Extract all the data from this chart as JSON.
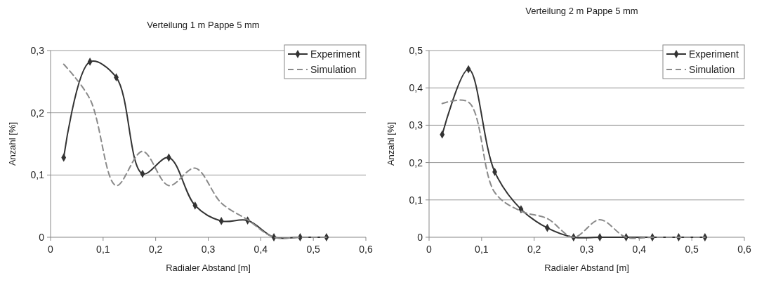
{
  "chart_data": [
    {
      "type": "line",
      "title": "Verteilung 1 m Pappe 5 mm",
      "xlabel": "Radialer Abstand [m]",
      "ylabel": "Anzahl [%]",
      "x": [
        0.025,
        0.075,
        0.125,
        0.175,
        0.225,
        0.275,
        0.325,
        0.375,
        0.425,
        0.475,
        0.525
      ],
      "series": [
        {
          "name": "Experiment",
          "color": "#333333",
          "marker": "diamond",
          "line_style": "solid",
          "values": [
            0.128,
            0.282,
            0.257,
            0.102,
            0.128,
            0.051,
            0.026,
            0.027,
            0,
            0,
            0
          ]
        },
        {
          "name": "Simulation",
          "color": "#8a8a8a",
          "marker": "none",
          "line_style": "dashed",
          "values": [
            0.278,
            0.222,
            0.083,
            0.138,
            0.083,
            0.111,
            0.055,
            0.028,
            0,
            0,
            0
          ]
        }
      ],
      "xlim": [
        0,
        0.6
      ],
      "xticks": [
        0,
        {
          "value": 0.1,
          "label": "0,1"
        },
        {
          "value": 0.2,
          "label": "0,2"
        },
        {
          "value": 0.3,
          "label": "0,3"
        },
        {
          "value": 0.4,
          "label": "0,4"
        },
        {
          "value": 0.5,
          "label": "0,5"
        },
        {
          "value": 0.6,
          "label": "0,6"
        }
      ],
      "ylim": [
        0,
        0.3
      ],
      "yticks": [
        0,
        {
          "value": 0.1,
          "label": "0,1"
        },
        {
          "value": 0.2,
          "label": "0,2"
        },
        {
          "value": 0.3,
          "label": "0,3"
        }
      ],
      "grid": "y",
      "legend": "top right"
    },
    {
      "type": "line",
      "title": "Verteilung 2 m Pappe 5 mm",
      "xlabel": "Radialer Abstand [m]",
      "ylabel": "Anzahl [%]",
      "x": [
        0.025,
        0.075,
        0.125,
        0.175,
        0.225,
        0.275,
        0.325,
        0.375,
        0.425,
        0.475,
        0.525
      ],
      "series": [
        {
          "name": "Experiment",
          "color": "#333333",
          "marker": "diamond",
          "line_style": "solid",
          "values": [
            0.275,
            0.45,
            0.175,
            0.075,
            0.025,
            0,
            0,
            0,
            0,
            0,
            0
          ]
        },
        {
          "name": "Simulation",
          "color": "#8a8a8a",
          "marker": "none",
          "line_style": "dashed",
          "values": [
            0.358,
            0.362,
            0.12,
            0.07,
            0.05,
            0,
            0.047,
            0,
            0,
            0,
            0
          ]
        }
      ],
      "xlim": [
        0,
        0.6
      ],
      "xticks": [
        0,
        {
          "value": 0.1,
          "label": "0,1"
        },
        {
          "value": 0.2,
          "label": "0,2"
        },
        {
          "value": 0.3,
          "label": "0,3"
        },
        {
          "value": 0.4,
          "label": "0,4"
        },
        {
          "value": 0.5,
          "label": "0,5"
        },
        {
          "value": 0.6,
          "label": "0,6"
        }
      ],
      "ylim": [
        0,
        0.5
      ],
      "yticks": [
        0,
        {
          "value": 0.1,
          "label": "0,1"
        },
        {
          "value": 0.2,
          "label": "0,2"
        },
        {
          "value": 0.3,
          "label": "0,3"
        },
        {
          "value": 0.4,
          "label": "0,4"
        },
        {
          "value": 0.5,
          "label": "0,5"
        }
      ],
      "grid": "y",
      "legend": "top right"
    }
  ]
}
